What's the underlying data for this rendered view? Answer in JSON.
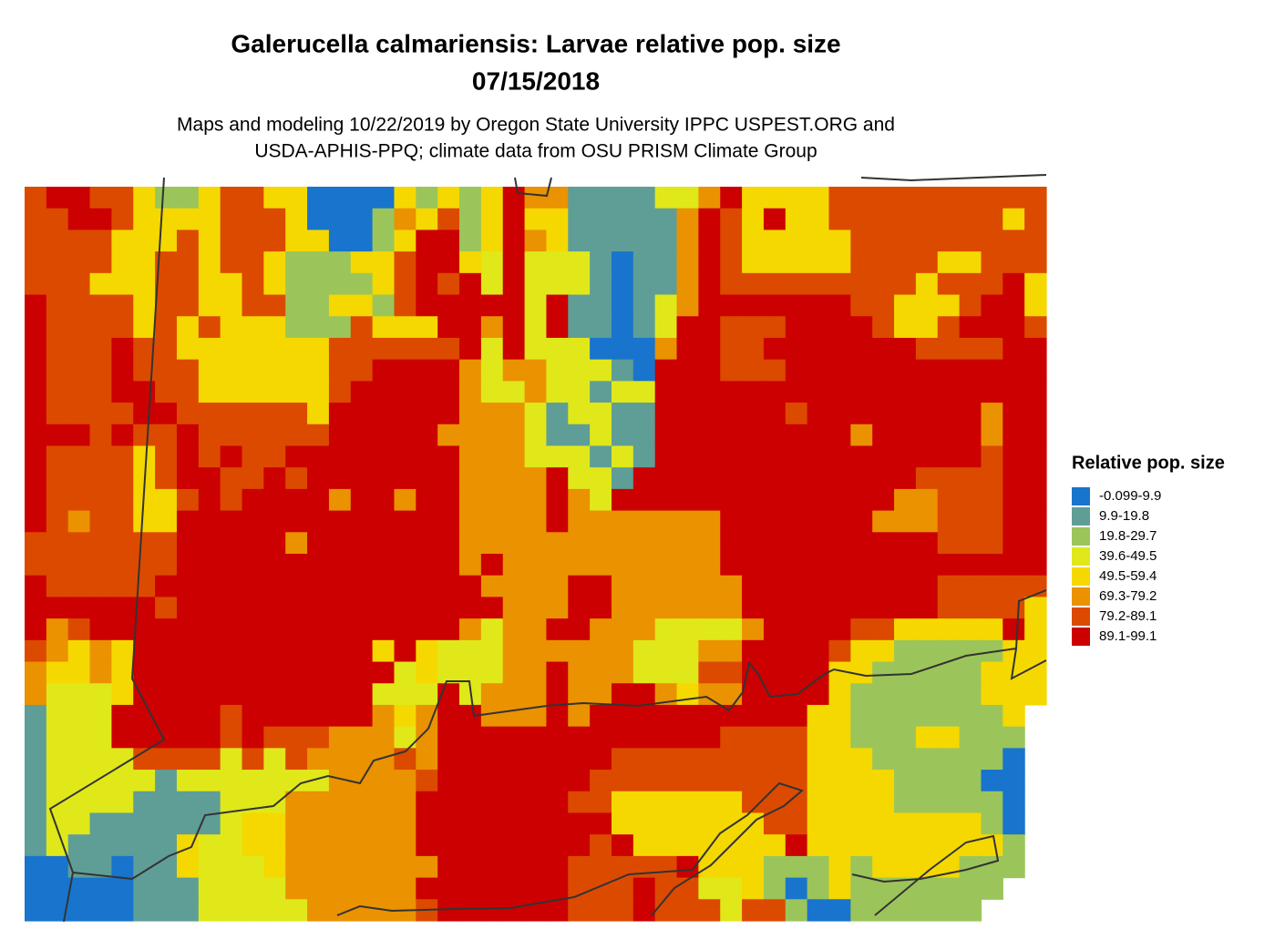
{
  "chart_data": {
    "type": "raster",
    "title_lines": [
      "Galerucella calmariensis: Larvae relative pop. size",
      "07/15/2018"
    ],
    "subtitle_lines": [
      "Maps and modeling 10/22/2019 by Oregon State University IPPC USPEST.ORG and",
      "USDA-APHIS-PPQ; climate data from OSU PRISM Climate Group"
    ],
    "legend": {
      "title": "Relative pop. size",
      "classes": [
        {
          "label": "-0.099-9.9",
          "color": "#1874cd"
        },
        {
          "label": "9.9-19.8",
          "color": "#5f9e96"
        },
        {
          "label": "19.8-29.7",
          "color": "#9bc55a"
        },
        {
          "label": "39.6-49.5",
          "color": "#e0e81a"
        },
        {
          "label": "49.5-59.4",
          "color": "#f5d800"
        },
        {
          "label": "69.3-79.2",
          "color": "#ea9200"
        },
        {
          "label": "79.2-89.1",
          "color": "#dc4a00"
        },
        {
          "label": "89.1-99.1",
          "color": "#cc0000"
        }
      ]
    },
    "grid": [
      [
        6,
        7,
        7,
        6,
        6,
        4,
        2,
        2,
        4,
        6,
        6,
        4,
        4,
        0,
        0,
        0,
        0,
        4,
        2,
        4,
        2,
        4,
        7,
        5,
        5,
        1,
        1,
        1,
        1,
        3,
        3,
        5,
        7,
        4,
        4,
        4,
        4,
        6,
        6,
        6,
        6,
        6,
        6,
        6,
        6,
        6,
        6
      ],
      [
        6,
        6,
        7,
        7,
        6,
        4,
        4,
        4,
        4,
        6,
        6,
        6,
        4,
        0,
        0,
        0,
        2,
        5,
        4,
        6,
        2,
        4,
        7,
        4,
        4,
        1,
        1,
        1,
        1,
        1,
        5,
        7,
        6,
        4,
        7,
        4,
        4,
        6,
        6,
        6,
        6,
        6,
        6,
        6,
        6,
        4,
        6
      ],
      [
        6,
        6,
        6,
        6,
        4,
        4,
        4,
        6,
        4,
        6,
        6,
        6,
        4,
        4,
        0,
        0,
        2,
        4,
        7,
        7,
        2,
        4,
        7,
        5,
        4,
        1,
        1,
        1,
        1,
        1,
        5,
        7,
        6,
        4,
        4,
        4,
        4,
        4,
        6,
        6,
        6,
        6,
        6,
        6,
        6,
        6,
        6
      ],
      [
        6,
        6,
        6,
        6,
        4,
        4,
        6,
        6,
        4,
        6,
        6,
        4,
        2,
        2,
        2,
        4,
        4,
        6,
        7,
        7,
        4,
        3,
        7,
        3,
        3,
        3,
        1,
        0,
        1,
        1,
        5,
        7,
        6,
        4,
        4,
        4,
        4,
        4,
        6,
        6,
        6,
        6,
        4,
        4,
        6,
        6,
        6
      ],
      [
        6,
        6,
        6,
        4,
        4,
        4,
        6,
        6,
        4,
        4,
        6,
        4,
        2,
        2,
        2,
        2,
        4,
        6,
        7,
        6,
        7,
        3,
        7,
        3,
        3,
        3,
        1,
        0,
        1,
        1,
        5,
        7,
        6,
        6,
        6,
        6,
        6,
        6,
        6,
        6,
        6,
        4,
        6,
        6,
        6,
        7,
        4
      ],
      [
        7,
        6,
        6,
        6,
        6,
        4,
        6,
        6,
        4,
        4,
        6,
        6,
        2,
        2,
        4,
        4,
        2,
        6,
        7,
        7,
        7,
        7,
        7,
        3,
        7,
        1,
        1,
        0,
        1,
        3,
        5,
        7,
        7,
        7,
        7,
        7,
        7,
        7,
        6,
        6,
        4,
        4,
        4,
        6,
        7,
        7,
        4
      ],
      [
        7,
        6,
        6,
        6,
        6,
        4,
        6,
        4,
        6,
        4,
        4,
        4,
        2,
        2,
        2,
        6,
        4,
        4,
        4,
        7,
        7,
        5,
        7,
        3,
        7,
        1,
        1,
        0,
        1,
        3,
        7,
        7,
        6,
        6,
        6,
        7,
        7,
        7,
        7,
        6,
        4,
        4,
        6,
        7,
        7,
        7,
        6
      ],
      [
        7,
        6,
        6,
        6,
        7,
        6,
        6,
        4,
        4,
        4,
        4,
        4,
        4,
        4,
        6,
        6,
        6,
        6,
        6,
        6,
        7,
        3,
        7,
        3,
        3,
        3,
        0,
        0,
        0,
        5,
        7,
        7,
        6,
        6,
        7,
        7,
        7,
        7,
        7,
        7,
        7,
        6,
        6,
        6,
        6,
        7,
        7
      ],
      [
        7,
        6,
        6,
        6,
        7,
        6,
        6,
        6,
        4,
        4,
        4,
        4,
        4,
        4,
        6,
        6,
        7,
        7,
        7,
        7,
        5,
        3,
        5,
        5,
        3,
        3,
        3,
        1,
        0,
        7,
        7,
        7,
        6,
        6,
        6,
        7,
        7,
        7,
        7,
        7,
        7,
        7,
        7,
        7,
        7,
        7,
        7
      ],
      [
        7,
        6,
        6,
        6,
        7,
        7,
        6,
        6,
        4,
        4,
        4,
        4,
        4,
        4,
        6,
        7,
        7,
        7,
        7,
        7,
        5,
        3,
        3,
        5,
        3,
        3,
        1,
        3,
        3,
        7,
        7,
        7,
        7,
        7,
        7,
        7,
        7,
        7,
        7,
        7,
        7,
        7,
        7,
        7,
        7,
        7,
        7
      ],
      [
        7,
        6,
        6,
        6,
        6,
        7,
        7,
        6,
        6,
        6,
        6,
        6,
        6,
        4,
        7,
        7,
        7,
        7,
        7,
        7,
        5,
        5,
        5,
        3,
        1,
        3,
        3,
        1,
        1,
        7,
        7,
        7,
        7,
        7,
        7,
        6,
        7,
        7,
        7,
        7,
        7,
        7,
        7,
        7,
        5,
        7,
        7
      ],
      [
        7,
        7,
        7,
        6,
        7,
        6,
        6,
        7,
        6,
        6,
        6,
        6,
        6,
        6,
        7,
        7,
        7,
        7,
        7,
        5,
        5,
        5,
        5,
        3,
        1,
        1,
        3,
        1,
        1,
        7,
        7,
        7,
        7,
        7,
        7,
        7,
        7,
        7,
        5,
        7,
        7,
        7,
        7,
        7,
        5,
        7,
        7
      ],
      [
        7,
        6,
        6,
        6,
        6,
        4,
        6,
        7,
        6,
        7,
        6,
        6,
        7,
        7,
        7,
        7,
        7,
        7,
        7,
        7,
        5,
        5,
        5,
        3,
        3,
        3,
        1,
        3,
        1,
        7,
        7,
        7,
        7,
        7,
        7,
        7,
        7,
        7,
        7,
        7,
        7,
        7,
        7,
        7,
        6,
        7,
        7
      ],
      [
        7,
        6,
        6,
        6,
        6,
        4,
        6,
        7,
        7,
        6,
        6,
        7,
        6,
        7,
        7,
        7,
        7,
        7,
        7,
        7,
        5,
        5,
        5,
        5,
        7,
        3,
        3,
        1,
        7,
        7,
        7,
        7,
        7,
        7,
        7,
        7,
        7,
        7,
        7,
        7,
        7,
        6,
        6,
        6,
        6,
        7,
        7
      ],
      [
        7,
        6,
        6,
        6,
        6,
        4,
        4,
        6,
        7,
        6,
        7,
        7,
        7,
        7,
        5,
        7,
        7,
        5,
        7,
        7,
        5,
        5,
        5,
        5,
        7,
        5,
        3,
        7,
        7,
        7,
        7,
        7,
        7,
        7,
        7,
        7,
        7,
        7,
        7,
        7,
        5,
        5,
        6,
        6,
        6,
        7,
        7
      ],
      [
        7,
        6,
        5,
        6,
        6,
        4,
        4,
        7,
        7,
        7,
        7,
        7,
        7,
        7,
        7,
        7,
        7,
        7,
        7,
        7,
        5,
        5,
        5,
        5,
        7,
        5,
        5,
        5,
        5,
        5,
        5,
        5,
        7,
        7,
        7,
        7,
        7,
        7,
        7,
        5,
        5,
        5,
        6,
        6,
        6,
        7,
        7
      ],
      [
        6,
        6,
        6,
        6,
        6,
        6,
        6,
        7,
        7,
        7,
        7,
        7,
        5,
        7,
        7,
        7,
        7,
        7,
        7,
        7,
        5,
        5,
        5,
        5,
        5,
        5,
        5,
        5,
        5,
        5,
        5,
        5,
        7,
        7,
        7,
        7,
        7,
        7,
        7,
        7,
        7,
        7,
        6,
        6,
        6,
        7,
        7
      ],
      [
        6,
        6,
        6,
        6,
        6,
        6,
        6,
        7,
        7,
        7,
        7,
        7,
        7,
        7,
        7,
        7,
        7,
        7,
        7,
        7,
        5,
        7,
        5,
        5,
        5,
        5,
        5,
        5,
        5,
        5,
        5,
        5,
        7,
        7,
        7,
        7,
        7,
        7,
        7,
        7,
        7,
        7,
        7,
        7,
        7,
        7,
        7
      ],
      [
        7,
        6,
        6,
        6,
        6,
        6,
        7,
        7,
        7,
        7,
        7,
        7,
        7,
        7,
        7,
        7,
        7,
        7,
        7,
        7,
        7,
        5,
        5,
        5,
        5,
        7,
        7,
        5,
        5,
        5,
        5,
        5,
        5,
        7,
        7,
        7,
        7,
        7,
        7,
        7,
        7,
        7,
        6,
        6,
        6,
        6,
        6
      ],
      [
        7,
        7,
        7,
        7,
        7,
        7,
        6,
        7,
        7,
        7,
        7,
        7,
        7,
        7,
        7,
        7,
        7,
        7,
        7,
        7,
        7,
        7,
        5,
        5,
        5,
        7,
        7,
        5,
        5,
        5,
        5,
        5,
        5,
        7,
        7,
        7,
        7,
        7,
        7,
        7,
        7,
        7,
        6,
        6,
        6,
        6,
        4
      ],
      [
        7,
        5,
        6,
        7,
        7,
        7,
        7,
        7,
        7,
        7,
        7,
        7,
        7,
        7,
        7,
        7,
        7,
        7,
        7,
        7,
        5,
        3,
        5,
        5,
        7,
        7,
        5,
        5,
        5,
        3,
        3,
        3,
        3,
        5,
        7,
        7,
        7,
        7,
        6,
        6,
        4,
        4,
        4,
        4,
        4,
        7,
        4
      ],
      [
        6,
        5,
        4,
        5,
        4,
        7,
        7,
        7,
        7,
        7,
        7,
        7,
        7,
        7,
        7,
        7,
        4,
        7,
        4,
        3,
        3,
        3,
        5,
        5,
        5,
        5,
        5,
        5,
        3,
        3,
        3,
        5,
        5,
        7,
        7,
        7,
        7,
        6,
        4,
        4,
        2,
        2,
        2,
        2,
        2,
        4,
        4
      ],
      [
        5,
        4,
        4,
        5,
        4,
        7,
        7,
        7,
        7,
        7,
        7,
        7,
        7,
        7,
        7,
        7,
        7,
        3,
        4,
        3,
        3,
        3,
        5,
        5,
        7,
        5,
        5,
        5,
        3,
        3,
        3,
        6,
        6,
        7,
        7,
        7,
        7,
        4,
        4,
        2,
        2,
        2,
        2,
        2,
        4,
        4,
        4
      ],
      [
        5,
        3,
        3,
        3,
        4,
        7,
        7,
        7,
        7,
        7,
        7,
        7,
        7,
        7,
        7,
        7,
        3,
        3,
        3,
        7,
        3,
        5,
        5,
        5,
        7,
        5,
        5,
        7,
        7,
        5,
        4,
        5,
        5,
        7,
        7,
        7,
        7,
        4,
        2,
        2,
        2,
        2,
        2,
        2,
        4,
        4,
        4
      ],
      [
        1,
        3,
        3,
        3,
        7,
        7,
        7,
        7,
        7,
        6,
        7,
        7,
        7,
        7,
        7,
        7,
        5,
        4,
        5,
        7,
        7,
        5,
        5,
        5,
        7,
        5,
        7,
        7,
        7,
        7,
        7,
        7,
        7,
        7,
        7,
        7,
        4,
        4,
        2,
        2,
        2,
        2,
        2,
        2,
        2,
        4,
        null
      ],
      [
        1,
        3,
        3,
        3,
        7,
        7,
        7,
        7,
        7,
        6,
        7,
        6,
        6,
        6,
        5,
        5,
        5,
        3,
        5,
        7,
        7,
        7,
        7,
        7,
        7,
        7,
        7,
        7,
        7,
        7,
        7,
        7,
        6,
        6,
        6,
        6,
        4,
        4,
        2,
        2,
        2,
        4,
        4,
        2,
        2,
        2,
        null
      ],
      [
        1,
        3,
        3,
        3,
        3,
        6,
        6,
        6,
        6,
        3,
        6,
        3,
        6,
        5,
        5,
        5,
        5,
        6,
        5,
        7,
        7,
        7,
        7,
        7,
        7,
        7,
        7,
        6,
        6,
        6,
        6,
        6,
        6,
        6,
        6,
        6,
        4,
        4,
        4,
        2,
        2,
        2,
        2,
        2,
        2,
        0,
        null
      ],
      [
        1,
        3,
        3,
        3,
        3,
        3,
        1,
        3,
        3,
        3,
        3,
        3,
        3,
        3,
        5,
        5,
        5,
        5,
        6,
        7,
        7,
        7,
        7,
        7,
        7,
        7,
        6,
        6,
        6,
        6,
        6,
        6,
        6,
        6,
        6,
        6,
        4,
        4,
        4,
        4,
        2,
        2,
        2,
        2,
        0,
        0,
        null
      ],
      [
        1,
        3,
        3,
        3,
        3,
        1,
        1,
        1,
        1,
        3,
        3,
        3,
        5,
        5,
        5,
        5,
        5,
        5,
        7,
        7,
        7,
        7,
        7,
        7,
        7,
        6,
        6,
        4,
        4,
        4,
        4,
        4,
        4,
        6,
        6,
        6,
        4,
        4,
        4,
        4,
        2,
        2,
        2,
        2,
        2,
        0,
        null
      ],
      [
        1,
        3,
        3,
        1,
        1,
        1,
        1,
        1,
        1,
        3,
        4,
        4,
        5,
        5,
        5,
        5,
        5,
        5,
        7,
        7,
        7,
        7,
        7,
        7,
        7,
        7,
        7,
        4,
        4,
        4,
        4,
        4,
        4,
        4,
        6,
        6,
        4,
        4,
        4,
        4,
        4,
        4,
        4,
        4,
        2,
        0,
        null
      ],
      [
        1,
        3,
        1,
        1,
        1,
        1,
        1,
        4,
        3,
        3,
        4,
        4,
        5,
        5,
        5,
        5,
        5,
        5,
        7,
        7,
        7,
        7,
        7,
        7,
        7,
        7,
        6,
        7,
        4,
        4,
        4,
        4,
        4,
        4,
        4,
        7,
        4,
        4,
        4,
        4,
        4,
        4,
        4,
        4,
        4,
        2,
        null
      ],
      [
        0,
        0,
        1,
        1,
        0,
        1,
        1,
        4,
        3,
        3,
        3,
        4,
        5,
        5,
        5,
        5,
        5,
        5,
        5,
        7,
        7,
        7,
        7,
        7,
        7,
        6,
        6,
        6,
        6,
        6,
        7,
        4,
        4,
        4,
        2,
        2,
        2,
        4,
        2,
        4,
        4,
        4,
        4,
        2,
        2,
        2,
        null
      ],
      [
        0,
        0,
        0,
        0,
        0,
        1,
        1,
        1,
        3,
        3,
        3,
        3,
        5,
        5,
        5,
        5,
        5,
        5,
        7,
        7,
        7,
        7,
        7,
        7,
        7,
        6,
        6,
        6,
        7,
        6,
        6,
        3,
        3,
        4,
        2,
        0,
        2,
        4,
        2,
        2,
        2,
        2,
        2,
        2,
        2,
        null,
        null
      ],
      [
        0,
        0,
        0,
        0,
        0,
        1,
        1,
        1,
        3,
        3,
        3,
        3,
        3,
        5,
        5,
        5,
        5,
        5,
        6,
        7,
        7,
        7,
        7,
        7,
        7,
        6,
        6,
        6,
        7,
        6,
        6,
        6,
        3,
        6,
        6,
        2,
        0,
        0,
        2,
        2,
        2,
        2,
        2,
        2,
        null,
        null,
        null
      ]
    ]
  }
}
